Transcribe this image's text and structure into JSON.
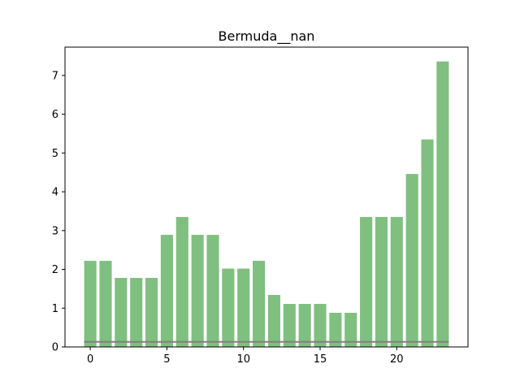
{
  "chart_data": {
    "type": "bar",
    "title": "Bermuda__nan",
    "xlabel": "",
    "ylabel": "",
    "x": [
      0,
      1,
      2,
      3,
      4,
      5,
      6,
      7,
      8,
      9,
      10,
      11,
      12,
      13,
      14,
      15,
      16,
      17,
      18,
      19,
      20,
      21,
      22,
      23
    ],
    "values": [
      2.22,
      2.22,
      1.78,
      1.78,
      1.78,
      2.89,
      3.35,
      2.89,
      2.89,
      2.02,
      2.02,
      2.22,
      1.34,
      1.11,
      1.11,
      1.11,
      0.88,
      0.88,
      3.35,
      3.35,
      3.35,
      4.46,
      5.35,
      7.36
    ],
    "baseline_value": 0.13,
    "xlim": [
      -1.65,
      24.65
    ],
    "ylim": [
      0,
      7.73
    ],
    "xticks": [
      0,
      5,
      10,
      15,
      20
    ],
    "yticks": [
      0,
      1,
      2,
      3,
      4,
      5,
      6,
      7
    ],
    "grid": false,
    "colors": {
      "bar": "#7fbf7f",
      "baseline": "#808080",
      "axis": "#000000"
    }
  }
}
